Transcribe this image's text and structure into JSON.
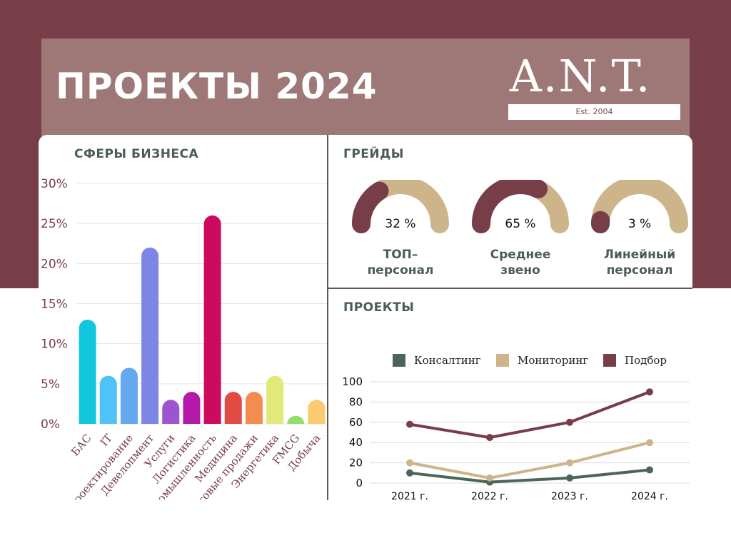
{
  "header": {
    "title": "ПРОЕКТЫ 2024",
    "logo_text": "A.N.T.",
    "logo_est": "Est. 2004"
  },
  "colors": {
    "background_top": "#773e4a",
    "header_band": "#9e7876",
    "section_title": "#4a5e56",
    "gauge_filled": "#773e4a",
    "gauge_track": "#cdb48b"
  },
  "sections": {
    "business": "СФЕРЫ БИЗНЕСА",
    "grades": "ГРЕЙДЫ",
    "projects": "ПРОЕКТЫ"
  },
  "gauges": [
    {
      "value_text": "32 %",
      "value": 32,
      "label_line1": "ТОП–",
      "label_line2": "персонал"
    },
    {
      "value_text": "65 %",
      "value": 65,
      "label_line1": "Среднее",
      "label_line2": "звено"
    },
    {
      "value_text": "3 %",
      "value": 3,
      "label_line1": "Линейный",
      "label_line2": "персонал"
    }
  ],
  "chart_data": [
    {
      "type": "bar",
      "title": "СФЕРЫ БИЗНЕСА",
      "categories": [
        "БАС",
        "IT",
        "Проектирование",
        "Девелопмент",
        "Услуги",
        "Логистика",
        "Промышленность",
        "Медицина",
        "Оптовые продажи",
        "Энергетика",
        "FMCG",
        "Добыча"
      ],
      "values": [
        13,
        6,
        7,
        22,
        3,
        4,
        26,
        4,
        4,
        6,
        1,
        3
      ],
      "colors": [
        "#12c6de",
        "#4fc3f7",
        "#64a8f0",
        "#7b86e6",
        "#9c55cf",
        "#b31aa8",
        "#cc0b5f",
        "#e04b43",
        "#f58c4f",
        "#e3e87a",
        "#95dd6c",
        "#fbc96f"
      ],
      "yticks": [
        "0%",
        "5%",
        "10%",
        "15%",
        "20%",
        "25%",
        "30%"
      ],
      "ylim": [
        0,
        30
      ],
      "grid": true
    },
    {
      "type": "line",
      "title": "ПРОЕКТЫ",
      "categories": [
        "2021 г.",
        "2022 г.",
        "2023 г.",
        "2024 г."
      ],
      "series": [
        {
          "name": "Консалтинг",
          "values": [
            10,
            1,
            5,
            13
          ],
          "color": "#4b6658"
        },
        {
          "name": "Мониторинг",
          "values": [
            20,
            5,
            20,
            40
          ],
          "color": "#cdb48b"
        },
        {
          "name": "Подбор",
          "values": [
            58,
            45,
            60,
            90
          ],
          "color": "#773e4a"
        }
      ],
      "yticks": [
        "0",
        "20",
        "40",
        "60",
        "80",
        "100"
      ],
      "ylim": [
        0,
        100
      ],
      "legend": "top",
      "grid": true
    }
  ]
}
